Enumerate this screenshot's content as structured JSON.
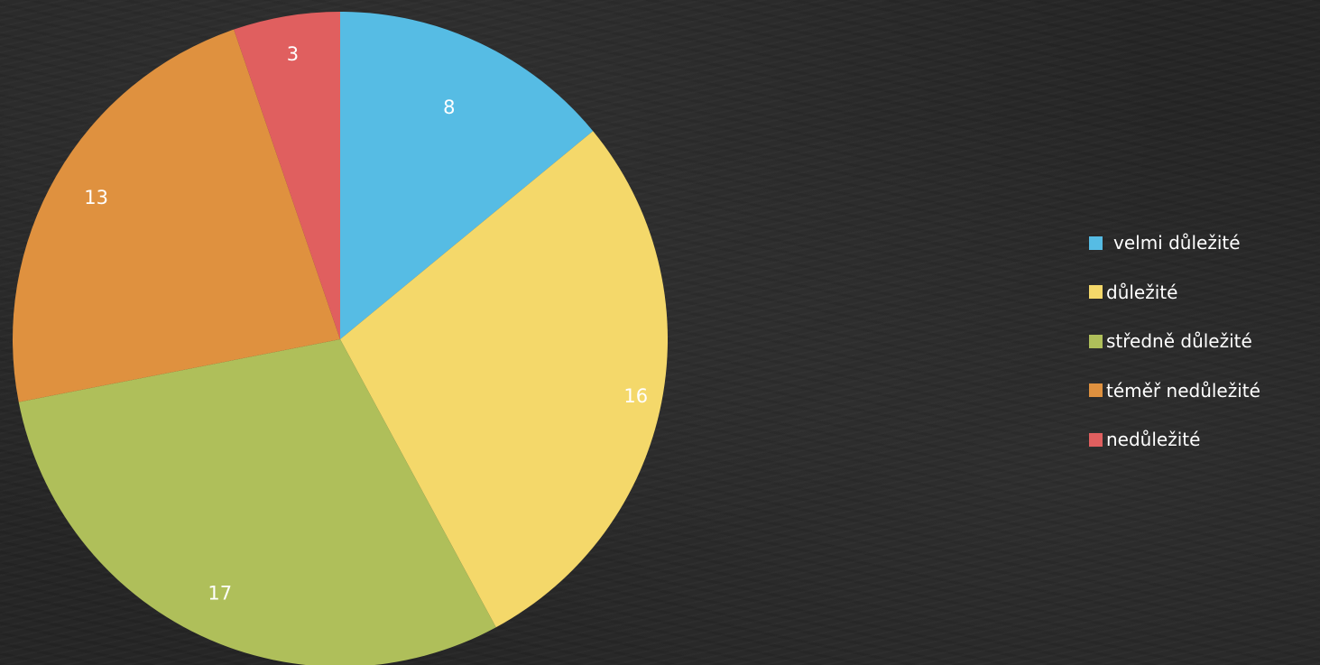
{
  "chart_data": {
    "type": "pie",
    "categories": [
      "velmi důležité",
      "důležité",
      "středně důležité",
      "téměř nedůležité",
      "nedůležité"
    ],
    "values": [
      8,
      16,
      17,
      13,
      3
    ],
    "data_labels": [
      "8",
      "16",
      "17",
      "13",
      "3"
    ],
    "colors": [
      "#56BCE4",
      "#F4D86A",
      "#AFBF5A",
      "#DF913F",
      "#E05F5F"
    ],
    "start_angle": "12 o'clock",
    "direction": "clockwise",
    "legend_position": "right"
  }
}
